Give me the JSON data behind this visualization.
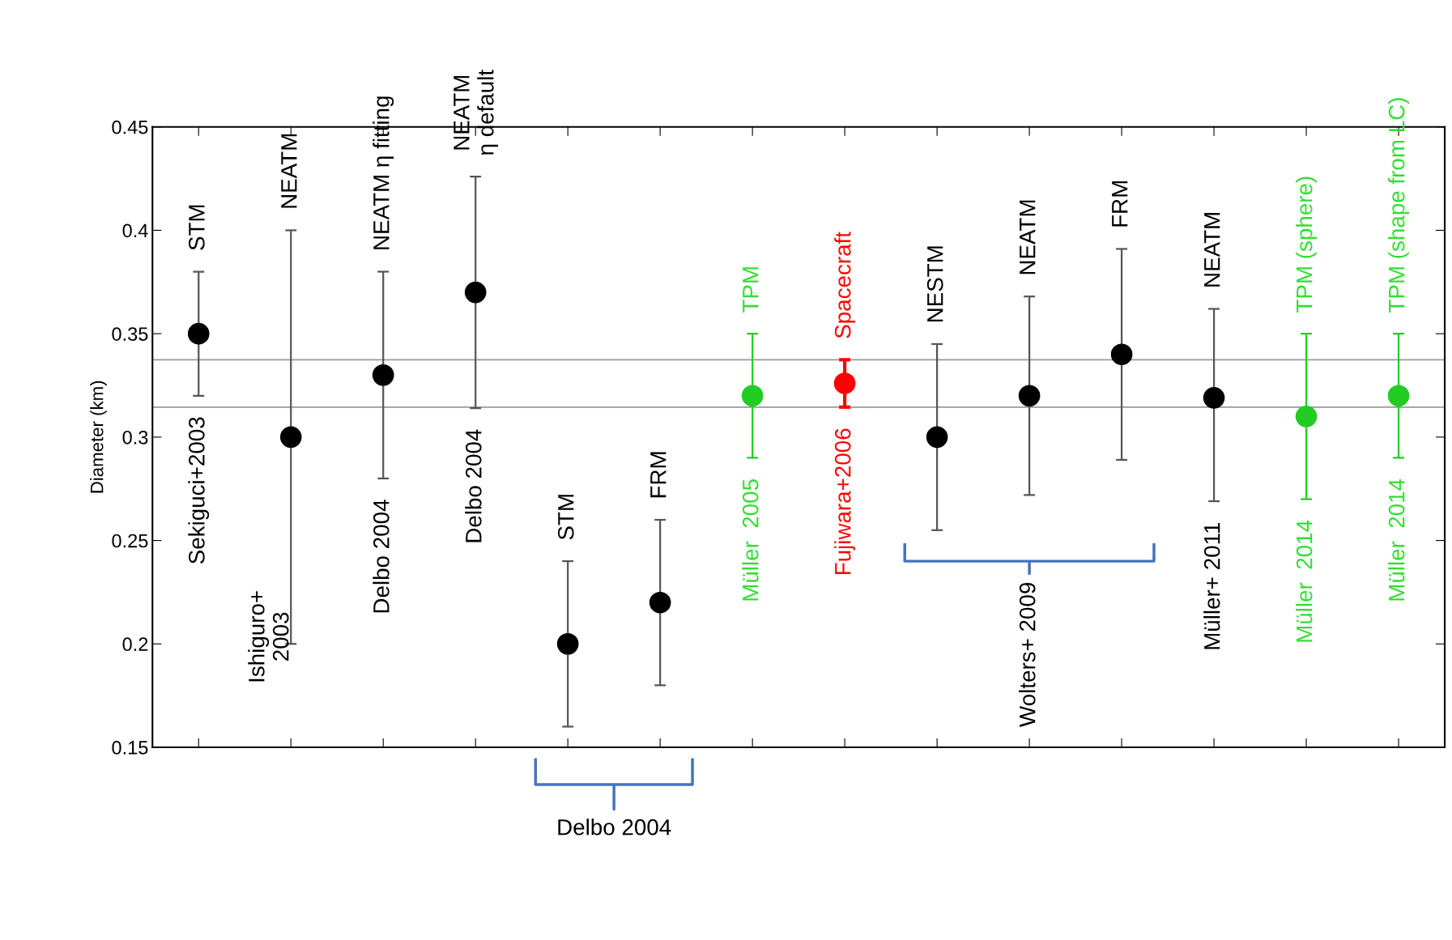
{
  "chart_data": {
    "type": "scatter",
    "ylabel": "Diameter (km)",
    "categories": [
      null,
      null,
      null,
      null,
      null,
      null,
      null,
      null,
      null,
      null,
      null,
      null,
      null,
      null
    ],
    "values": [
      0.35,
      0.3,
      0.33,
      0.37,
      0.2,
      0.22,
      0.32,
      0.326,
      0.3,
      0.32,
      0.34,
      0.319,
      0.31,
      0.32
    ],
    "errors": [
      [
        0.32,
        0.38
      ],
      [
        0.2,
        0.4
      ],
      [
        0.28,
        0.38
      ],
      [
        0.314,
        0.426
      ],
      [
        0.16,
        0.24
      ],
      [
        0.18,
        0.26
      ],
      [
        0.29,
        0.35
      ],
      [
        0.3145,
        0.3374
      ],
      [
        0.255,
        0.345
      ],
      [
        0.272,
        0.368
      ],
      [
        0.289,
        0.391
      ],
      [
        0.269,
        0.362
      ],
      [
        0.27,
        0.35
      ],
      [
        0.29,
        0.35
      ]
    ],
    "colors": [
      "#000000",
      "#000000",
      "#000000",
      "#000000",
      "#000000",
      "#000000",
      "#22cc22",
      "#ff0000",
      "#000000",
      "#000000",
      "#000000",
      "#000000",
      "#22cc22",
      "#22cc22"
    ],
    "ylim": [
      0.15,
      0.45
    ],
    "yticks": [
      0.15,
      0.2,
      0.25,
      0.3,
      0.35,
      0.4,
      0.45
    ],
    "ref_lines": [
      {
        "axis": "y",
        "value": 0.3374,
        "color": "#999999"
      },
      {
        "axis": "y",
        "value": 0.3145,
        "color": "#999999"
      }
    ],
    "marker": "circle",
    "grid": false,
    "annotations": [
      "STM",
      "NEATM",
      "NEATM η fitting",
      "NEATM\nη default",
      "STM",
      "FRM",
      "TPM",
      "Spacecraft",
      "NESTM",
      "NEATM",
      "FRM",
      "NEATM",
      "TPM (sphere)",
      "TPM (shape from LC)",
      "Sekiguci+2003",
      "Ishiguro+\n2003",
      "Delbo 2004",
      "Delbo 2004",
      "Müller  2005",
      "Fujiwara+2006",
      "Müller+ 2011",
      "Müller  2014",
      "Müller  2014",
      "Delbo 2004",
      "Wolters+ 2009"
    ]
  }
}
